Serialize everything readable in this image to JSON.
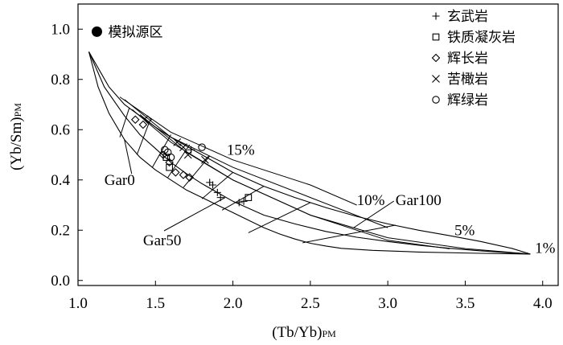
{
  "chart_data": {
    "type": "scatter",
    "xlabel": "(Tb/Yb)PM",
    "xlabel_main": "(Tb/Yb)",
    "xlabel_sub": "PM",
    "ylabel": "(Yb/Sm)PM",
    "ylabel_main": "(Yb/Sm)",
    "ylabel_sub": "PM",
    "xlim": [
      1.0,
      4.1
    ],
    "ylim": [
      -0.02,
      1.1
    ],
    "x_ticks": [
      "1.0",
      "1.5",
      "2.0",
      "2.5",
      "3.0",
      "3.5",
      "4.0"
    ],
    "y_ticks": [
      "0.0",
      "0.2",
      "0.4",
      "0.6",
      "0.8",
      "1.0"
    ],
    "source_label": "模拟源区",
    "legend": [
      {
        "marker": "plus",
        "label": "玄武岩"
      },
      {
        "marker": "square",
        "label": "铁质凝灰岩"
      },
      {
        "marker": "diamond",
        "label": "辉长岩"
      },
      {
        "marker": "cross",
        "label": "苦橄岩"
      },
      {
        "marker": "circle",
        "label": "辉绿岩"
      }
    ],
    "model_curves": [
      {
        "name": "Gar0",
        "points": [
          [
            1.07,
            0.91
          ],
          [
            1.13,
            0.77
          ],
          [
            1.2,
            0.665
          ],
          [
            1.3,
            0.56
          ],
          [
            1.4,
            0.49
          ],
          [
            1.5,
            0.44
          ],
          [
            1.6,
            0.4
          ],
          [
            1.7,
            0.36
          ],
          [
            1.8,
            0.33
          ],
          [
            1.9,
            0.3
          ],
          [
            2.0,
            0.27
          ],
          [
            2.1,
            0.24
          ],
          [
            2.2,
            0.21
          ],
          [
            2.3,
            0.185
          ],
          [
            2.4,
            0.165
          ],
          [
            2.5,
            0.148
          ],
          [
            2.6,
            0.137
          ],
          [
            2.7,
            0.128
          ],
          [
            2.9,
            0.12
          ],
          [
            3.2,
            0.113
          ],
          [
            3.6,
            0.108
          ],
          [
            3.92,
            0.105
          ]
        ]
      },
      {
        "name": "Gar50",
        "points": [
          [
            1.07,
            0.91
          ],
          [
            1.17,
            0.77
          ],
          [
            1.3,
            0.655
          ],
          [
            1.4,
            0.58
          ],
          [
            1.5,
            0.525
          ],
          [
            1.6,
            0.47
          ],
          [
            1.7,
            0.425
          ],
          [
            1.8,
            0.385
          ],
          [
            1.9,
            0.35
          ],
          [
            2.0,
            0.315
          ],
          [
            2.2,
            0.26
          ],
          [
            2.4,
            0.225
          ],
          [
            2.6,
            0.195
          ],
          [
            2.8,
            0.172
          ],
          [
            3.0,
            0.155
          ],
          [
            3.2,
            0.14
          ],
          [
            3.4,
            0.128
          ],
          [
            3.6,
            0.118
          ],
          [
            3.8,
            0.11
          ],
          [
            3.92,
            0.105
          ]
        ]
      },
      {
        "name": "Gar100",
        "points": [
          [
            1.07,
            0.91
          ],
          [
            1.2,
            0.77
          ],
          [
            1.3,
            0.7
          ],
          [
            1.4,
            0.655
          ],
          [
            1.5,
            0.61
          ],
          [
            1.6,
            0.57
          ],
          [
            1.7,
            0.535
          ],
          [
            1.8,
            0.5
          ],
          [
            1.9,
            0.465
          ],
          [
            2.0,
            0.43
          ],
          [
            2.2,
            0.375
          ],
          [
            2.4,
            0.33
          ],
          [
            2.6,
            0.29
          ],
          [
            2.8,
            0.255
          ],
          [
            3.0,
            0.225
          ],
          [
            3.2,
            0.2
          ],
          [
            3.4,
            0.178
          ],
          [
            3.6,
            0.155
          ],
          [
            3.8,
            0.128
          ],
          [
            3.92,
            0.105
          ]
        ]
      }
    ],
    "tie_lines": [
      [
        [
          1.27,
          0.57
        ],
        [
          1.33,
          0.685
        ]
      ],
      [
        [
          1.38,
          0.5
        ],
        [
          1.46,
          0.63
        ]
      ],
      [
        [
          1.48,
          0.45
        ],
        [
          1.6,
          0.58
        ]
      ],
      [
        [
          1.58,
          0.41
        ],
        [
          1.72,
          0.54
        ]
      ],
      [
        [
          1.68,
          0.37
        ],
        [
          1.85,
          0.495
        ]
      ],
      [
        [
          1.8,
          0.325
        ],
        [
          2.0,
          0.43
        ]
      ],
      [
        [
          1.93,
          0.28
        ],
        [
          2.2,
          0.375
        ]
      ],
      [
        [
          2.1,
          0.19
        ],
        [
          2.5,
          0.31
        ]
      ],
      [
        [
          2.45,
          0.15
        ],
        [
          3.05,
          0.22
        ]
      ]
    ],
    "percent_lines": [
      {
        "label": "15%",
        "points": [
          [
            1.27,
            0.73
          ],
          [
            1.6,
            0.59
          ],
          [
            2.0,
            0.48
          ],
          [
            2.5,
            0.38
          ],
          [
            2.8,
            0.3
          ]
        ]
      },
      {
        "label": "10%",
        "points": [
          [
            1.3,
            0.72
          ],
          [
            1.6,
            0.57
          ],
          [
            2.0,
            0.45
          ],
          [
            2.5,
            0.33
          ],
          [
            3.0,
            0.21
          ]
        ]
      },
      {
        "label": "5%",
        "points": [
          [
            1.35,
            0.68
          ],
          [
            1.6,
            0.55
          ],
          [
            2.0,
            0.4
          ],
          [
            2.5,
            0.26
          ],
          [
            3.0,
            0.16
          ],
          [
            3.4,
            0.126
          ]
        ]
      },
      {
        "label": "1%",
        "points": [
          [
            1.4,
            0.66
          ],
          [
            1.7,
            0.51
          ],
          [
            2.0,
            0.4
          ],
          [
            2.5,
            0.26
          ],
          [
            3.0,
            0.17
          ],
          [
            3.5,
            0.127
          ],
          [
            3.92,
            0.105
          ]
        ]
      }
    ],
    "curve_labels": [
      {
        "text": "Gar0",
        "x": 1.17,
        "y": 0.38,
        "target": [
          1.3,
          0.56
        ]
      },
      {
        "text": "Gar50",
        "x": 1.42,
        "y": 0.14,
        "target": [
          1.95,
          0.33
        ]
      },
      {
        "text": "Gar100",
        "x": 3.05,
        "y": 0.3,
        "target": [
          2.78,
          0.21
        ]
      },
      {
        "text": "15%",
        "x": 1.96,
        "y": 0.5
      },
      {
        "text": "10%",
        "x": 2.8,
        "y": 0.3
      },
      {
        "text": "5%",
        "x": 3.43,
        "y": 0.18
      },
      {
        "text": "1%",
        "x": 3.95,
        "y": 0.11
      }
    ],
    "source_point": [
      1.07,
      0.99
    ],
    "samples": [
      {
        "marker": "plus",
        "points": [
          [
            1.73,
            0.52
          ],
          [
            1.85,
            0.39
          ],
          [
            1.87,
            0.38
          ],
          [
            1.9,
            0.35
          ],
          [
            1.92,
            0.33
          ],
          [
            2.04,
            0.31
          ],
          [
            2.07,
            0.315
          ]
        ]
      },
      {
        "marker": "square",
        "points": [
          [
            1.57,
            0.49
          ],
          [
            1.59,
            0.45
          ],
          [
            2.1,
            0.33
          ]
        ]
      },
      {
        "marker": "diamond",
        "points": [
          [
            1.37,
            0.64
          ],
          [
            1.42,
            0.62
          ],
          [
            1.45,
            0.64
          ],
          [
            1.55,
            0.5
          ],
          [
            1.59,
            0.47
          ],
          [
            1.63,
            0.43
          ],
          [
            1.68,
            0.42
          ],
          [
            1.72,
            0.41
          ]
        ]
      },
      {
        "marker": "cross",
        "points": [
          [
            1.64,
            0.55
          ],
          [
            1.68,
            0.53
          ],
          [
            1.71,
            0.5
          ],
          [
            1.82,
            0.48
          ]
        ]
      },
      {
        "marker": "circle",
        "points": [
          [
            1.56,
            0.52
          ],
          [
            1.58,
            0.51
          ],
          [
            1.6,
            0.49
          ],
          [
            1.8,
            0.53
          ]
        ]
      }
    ]
  }
}
